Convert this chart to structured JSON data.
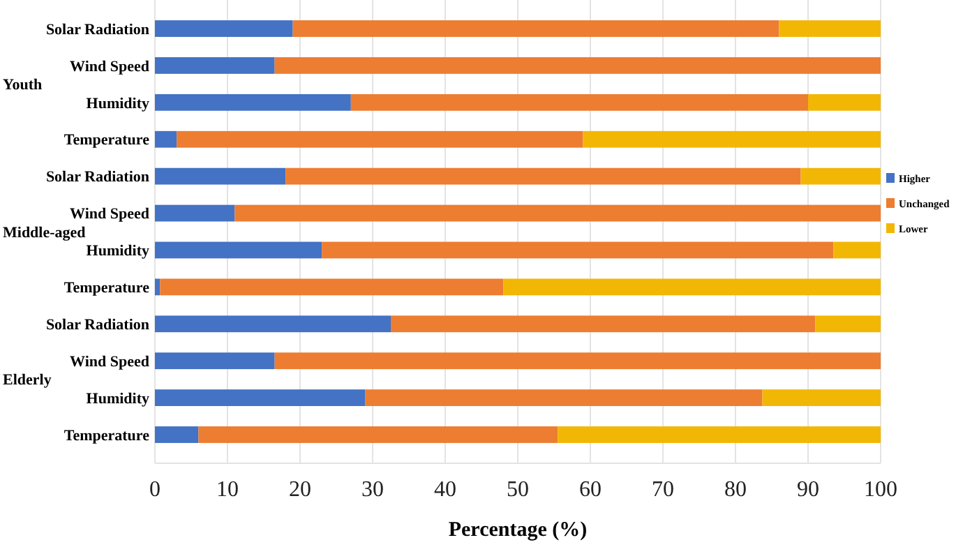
{
  "chart_data": {
    "type": "bar",
    "orientation": "horizontal",
    "stacked": true,
    "categories": [
      "Solar Radiation",
      "Wind Speed",
      "Humidity",
      "Temperature",
      "Solar Radiation",
      "Wind Speed",
      "Humidity",
      "Temperature",
      "Solar Radiation",
      "Wind Speed",
      "Humidity",
      "Temperature"
    ],
    "series": [
      {
        "name": "Higher",
        "color": "#4472c4",
        "values": [
          19,
          16.5,
          27,
          3,
          18,
          11,
          23,
          0.7,
          32.5,
          16.5,
          29,
          6
        ]
      },
      {
        "name": "Unchanged",
        "color": "#ed7d31",
        "values": [
          67,
          83.5,
          63,
          56,
          71,
          89,
          70.5,
          47.3,
          58.5,
          83.5,
          54.7,
          49.5
        ]
      },
      {
        "name": "Lower",
        "color": "#f2b705",
        "values": [
          14,
          0,
          10,
          41,
          11,
          0,
          6.5,
          52,
          9,
          0,
          16.3,
          44.5
        ]
      }
    ],
    "xlabel": "Percentage (%)",
    "xlim": [
      0,
      100
    ],
    "xticks": [
      0,
      10,
      20,
      30,
      40,
      50,
      60,
      70,
      80,
      90,
      100
    ],
    "grid": "x",
    "legend": "right",
    "annotations": [
      "Youth",
      "Middle-aged",
      "Elderly"
    ]
  }
}
